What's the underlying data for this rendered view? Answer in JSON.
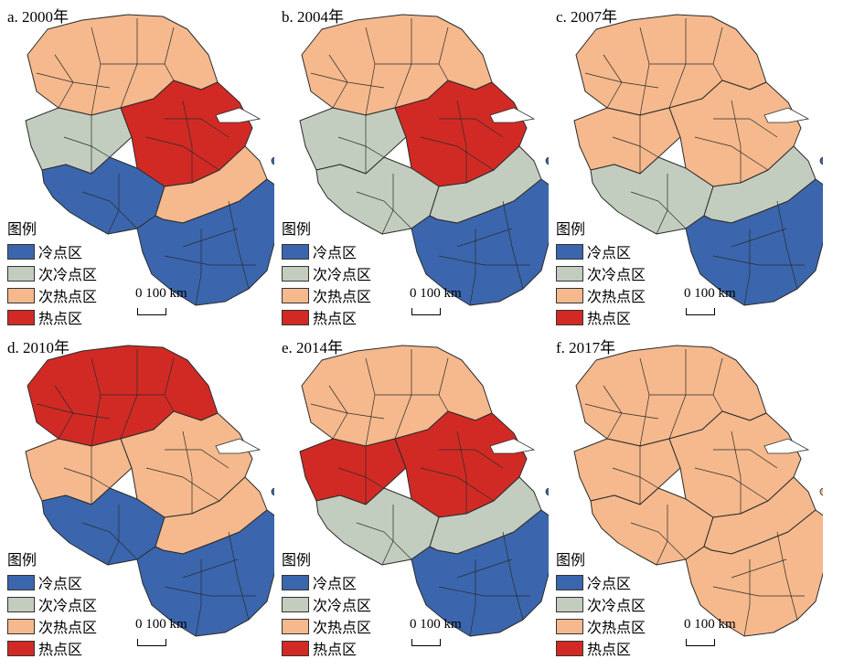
{
  "colors": {
    "cold": "#3b66ad",
    "subcold": "#c3cdbf",
    "subhot": "#f5b98d",
    "hot": "#d12a25",
    "border": "#2b2b2b",
    "river": "#ffffff"
  },
  "legend": {
    "title": "图例",
    "items": [
      {
        "key": "cold",
        "label": "冷点区"
      },
      {
        "key": "subcold",
        "label": "次冷点区"
      },
      {
        "key": "subhot",
        "label": "次热点区"
      },
      {
        "key": "hot",
        "label": "热点区"
      }
    ]
  },
  "scale": {
    "label": "0 100 km"
  },
  "panels": [
    {
      "title": "a. 2000年",
      "zones": {
        "north": "subhot",
        "midwest": "subcold",
        "center": "hot",
        "southwest": "cold",
        "midstrip": "subhot",
        "south": "cold"
      }
    },
    {
      "title": "b. 2004年",
      "zones": {
        "north": "subhot",
        "midwest": "subcold",
        "center": "hot",
        "southwest": "subcold",
        "midstrip": "subcold",
        "south": "cold"
      }
    },
    {
      "title": "c. 2007年",
      "zones": {
        "north": "subhot",
        "midwest": "subhot",
        "center": "subhot",
        "southwest": "subcold",
        "midstrip": "subcold",
        "south": "cold"
      }
    },
    {
      "title": "d. 2010年",
      "zones": {
        "north": "hot",
        "midwest": "subhot",
        "center": "subhot",
        "southwest": "cold",
        "midstrip": "subhot",
        "south": "cold"
      }
    },
    {
      "title": "e. 2014年",
      "zones": {
        "north": "subhot",
        "midwest": "hot",
        "center": "hot",
        "southwest": "subcold",
        "midstrip": "subcold",
        "south": "cold"
      }
    },
    {
      "title": "f. 2017年",
      "zones": {
        "north": "subhot",
        "midwest": "subhot",
        "center": "subhot",
        "southwest": "subhot",
        "midstrip": "subhot",
        "south": "subhot"
      }
    }
  ]
}
